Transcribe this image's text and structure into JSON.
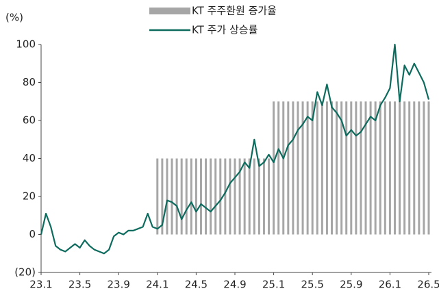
{
  "chart_data": {
    "type": "combo",
    "y_label": "(%)",
    "legend": "top",
    "categories": [
      "23.1",
      null,
      null,
      null,
      null,
      null,
      null,
      null,
      "23.5",
      null,
      null,
      null,
      null,
      null,
      null,
      null,
      "23.9",
      null,
      null,
      null,
      null,
      null,
      null,
      null,
      "24.1",
      null,
      null,
      null,
      null,
      null,
      null,
      null,
      "24.5",
      null,
      null,
      null,
      null,
      null,
      null,
      null,
      "24.9",
      null,
      null,
      null,
      null,
      null,
      null,
      null,
      "25.1",
      null,
      null,
      null,
      null,
      null,
      null,
      null,
      "25.5",
      null,
      null,
      null,
      null,
      null,
      null,
      null,
      "25.9",
      null,
      null,
      null,
      null,
      null,
      null,
      null,
      "26.1",
      null,
      null,
      null,
      null,
      null,
      null,
      null,
      "26.5"
    ],
    "ylim": [
      -20,
      100
    ],
    "yticks": [
      {
        "value": -20,
        "label": "(20)"
      },
      0,
      20,
      40,
      60,
      80,
      100
    ],
    "series": [
      {
        "name": "KT 주주환원 증가율",
        "kind": "bar",
        "color": "#a6a6a6",
        "values": [
          0,
          0,
          0,
          0,
          0,
          0,
          0,
          0,
          0,
          0,
          0,
          0,
          0,
          0,
          0,
          0,
          0,
          0,
          0,
          0,
          0,
          0,
          0,
          0,
          40,
          40,
          40,
          40,
          40,
          40,
          40,
          40,
          40,
          40,
          40,
          40,
          40,
          40,
          40,
          40,
          40,
          40,
          40,
          40,
          40,
          40,
          40,
          40,
          70,
          70,
          70,
          70,
          70,
          70,
          70,
          70,
          70,
          70,
          70,
          70,
          70,
          70,
          70,
          70,
          70,
          70,
          70,
          70,
          70,
          70,
          70,
          70,
          70,
          70,
          70,
          70,
          70,
          70,
          70,
          70,
          70
        ]
      },
      {
        "name": "KT 주가 상승률",
        "kind": "line",
        "color": "#0d6b5e",
        "values": [
          0,
          11,
          4,
          -6,
          -8,
          -9,
          -7,
          -5,
          -7,
          -3,
          -6,
          -8,
          -9,
          -10,
          -8,
          -1,
          1,
          0,
          2,
          2,
          3,
          4,
          11,
          4,
          3,
          5,
          18,
          17,
          15,
          8,
          13,
          17,
          12,
          16,
          14,
          12,
          15,
          18,
          22,
          27,
          30,
          33,
          38,
          35,
          50,
          36,
          38,
          42,
          38,
          45,
          40,
          47,
          50,
          55,
          58,
          62,
          60,
          75,
          68,
          79,
          67,
          64,
          60,
          52,
          55,
          52,
          54,
          58,
          62,
          60,
          68,
          72,
          77,
          100,
          70,
          89,
          84,
          90,
          85,
          80,
          71
        ]
      }
    ]
  }
}
